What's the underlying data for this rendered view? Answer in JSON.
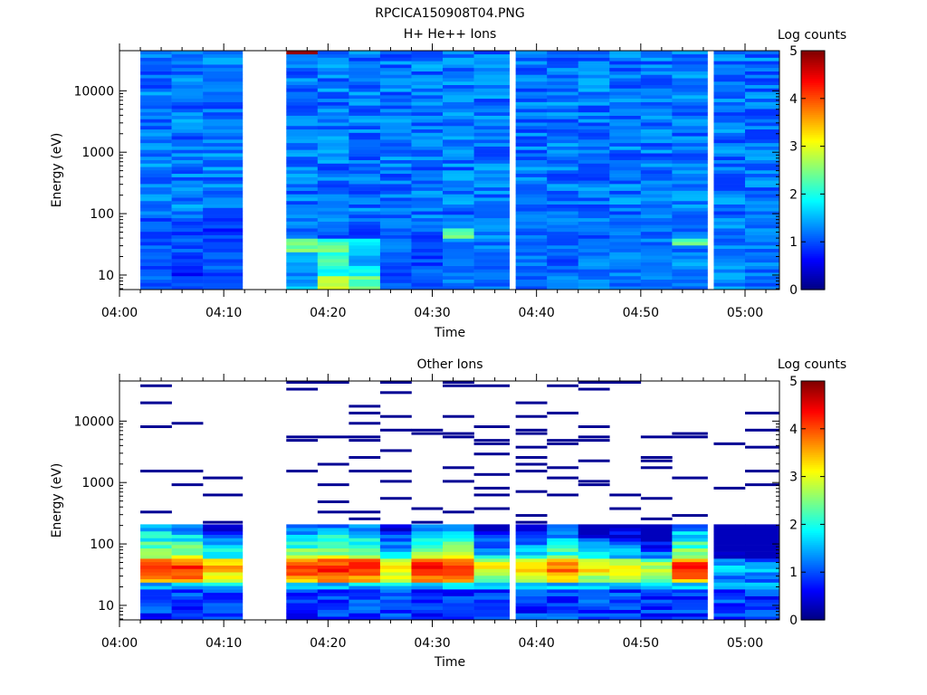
{
  "figure_title": "RPCICA150908T04.PNG",
  "chart_data": [
    {
      "type": "heatmap",
      "title": "H+ He++ Ions",
      "xlabel": "Time",
      "ylabel": "Energy (eV)",
      "y_scale": "log",
      "x_ticks": [
        "04:00",
        "04:10",
        "04:20",
        "04:30",
        "04:40",
        "04:50",
        "05:00"
      ],
      "y_ticks": [
        "10",
        "100",
        "1000",
        "10000"
      ],
      "colorbar": {
        "label": "Log counts",
        "range": [
          0,
          5
        ],
        "ticks": [
          "0",
          "1",
          "2",
          "3",
          "4",
          "5"
        ]
      },
      "time_bins": [
        "04:02",
        "04:05",
        "04:08",
        "04:16",
        "04:19",
        "04:22",
        "04:25",
        "04:28",
        "04:31",
        "04:34",
        "04:38",
        "04:41",
        "04:44",
        "04:47",
        "04:50",
        "04:53",
        "04:57",
        "05:00"
      ],
      "energy_profile_log_counts": [
        [
          1.0,
          0.9,
          1.1,
          1.5,
          2.8,
          2.4,
          1.0,
          1.1,
          1.2,
          1.2,
          1.2,
          1.2,
          1.2,
          1.2,
          1.2,
          1.3,
          1.3,
          1.2
        ],
        [
          1.0,
          0.8,
          1.0,
          1.2,
          2.0,
          1.8,
          1.0,
          1.1,
          1.2,
          1.2,
          1.2,
          1.2,
          1.2,
          1.2,
          1.2,
          1.3,
          1.3,
          1.2
        ],
        [
          0.9,
          0.9,
          0.9,
          1.6,
          2.2,
          1.5,
          1.0,
          1.0,
          1.2,
          1.1,
          1.2,
          1.1,
          1.2,
          1.2,
          1.2,
          1.3,
          1.2,
          1.2
        ],
        [
          1.0,
          0.9,
          1.0,
          1.6,
          2.2,
          1.6,
          1.1,
          1.0,
          1.2,
          1.2,
          1.2,
          1.2,
          1.2,
          1.2,
          1.2,
          1.3,
          1.3,
          1.2
        ],
        [
          1.1,
          1.0,
          1.0,
          2.4,
          2.3,
          1.6,
          1.1,
          1.1,
          1.2,
          1.2,
          1.2,
          1.2,
          1.2,
          1.2,
          1.2,
          1.2,
          1.2,
          1.2
        ],
        [
          1.0,
          1.0,
          1.0,
          2.3,
          2.1,
          2.0,
          1.3,
          1.1,
          1.2,
          1.2,
          1.2,
          1.2,
          1.1,
          1.2,
          1.2,
          2.3,
          1.2,
          1.2
        ],
        [
          1.0,
          1.0,
          0.9,
          1.0,
          1.0,
          1.0,
          1.0,
          1.0,
          2.4,
          1.3,
          1.2,
          1.2,
          1.1,
          1.1,
          1.1,
          1.2,
          1.2,
          1.2
        ],
        [
          1.0,
          0.9,
          1.0,
          1.2,
          1.2,
          1.1,
          1.1,
          1.1,
          1.2,
          1.2,
          1.3,
          1.2,
          1.2,
          1.2,
          1.2,
          1.2,
          1.3,
          1.2
        ]
      ]
    },
    {
      "type": "heatmap",
      "title": "Other Ions",
      "xlabel": "Time",
      "ylabel": "Energy (eV)",
      "y_scale": "log",
      "x_ticks": [
        "04:00",
        "04:10",
        "04:20",
        "04:30",
        "04:40",
        "04:50",
        "05:00"
      ],
      "y_ticks": [
        "10",
        "100",
        "1000",
        "10000"
      ],
      "colorbar": {
        "label": "Log counts",
        "range": [
          0,
          5
        ],
        "ticks": [
          "0",
          "1",
          "2",
          "3",
          "4",
          "5"
        ]
      },
      "time_bins": [
        "04:02",
        "04:05",
        "04:08",
        "04:16",
        "04:19",
        "04:22",
        "04:25",
        "04:28",
        "04:31",
        "04:34",
        "04:38",
        "04:41",
        "04:44",
        "04:47",
        "04:50",
        "04:53",
        "04:57",
        "05:00"
      ],
      "peak_log_counts_near_40eV": [
        4.4,
        4.3,
        3.6,
        4.2,
        4.4,
        4.3,
        3.4,
        4.4,
        4.4,
        3.2,
        3.4,
        3.9,
        3.3,
        3.2,
        2.9,
        4.3,
        1.8,
        1.6
      ],
      "high_energy_background_log_counts": 0.1
    }
  ]
}
